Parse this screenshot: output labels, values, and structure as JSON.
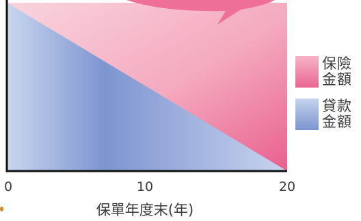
{
  "chart_data": {
    "type": "area",
    "title": "",
    "xlabel": "保單年度末(年)",
    "ylabel": "",
    "x": [
      0,
      20
    ],
    "xticks": [
      "0",
      "10",
      "20"
    ],
    "xlim": [
      0,
      20
    ],
    "ylim": [
      0,
      1
    ],
    "series": [
      {
        "name": "保險金額",
        "values": [
          1,
          1
        ],
        "color": "#ea6592"
      },
      {
        "name": "貸款金額",
        "values": [
          1,
          0
        ],
        "color": "#7b94cf"
      }
    ],
    "legend_position": "right",
    "grid": false
  }
}
